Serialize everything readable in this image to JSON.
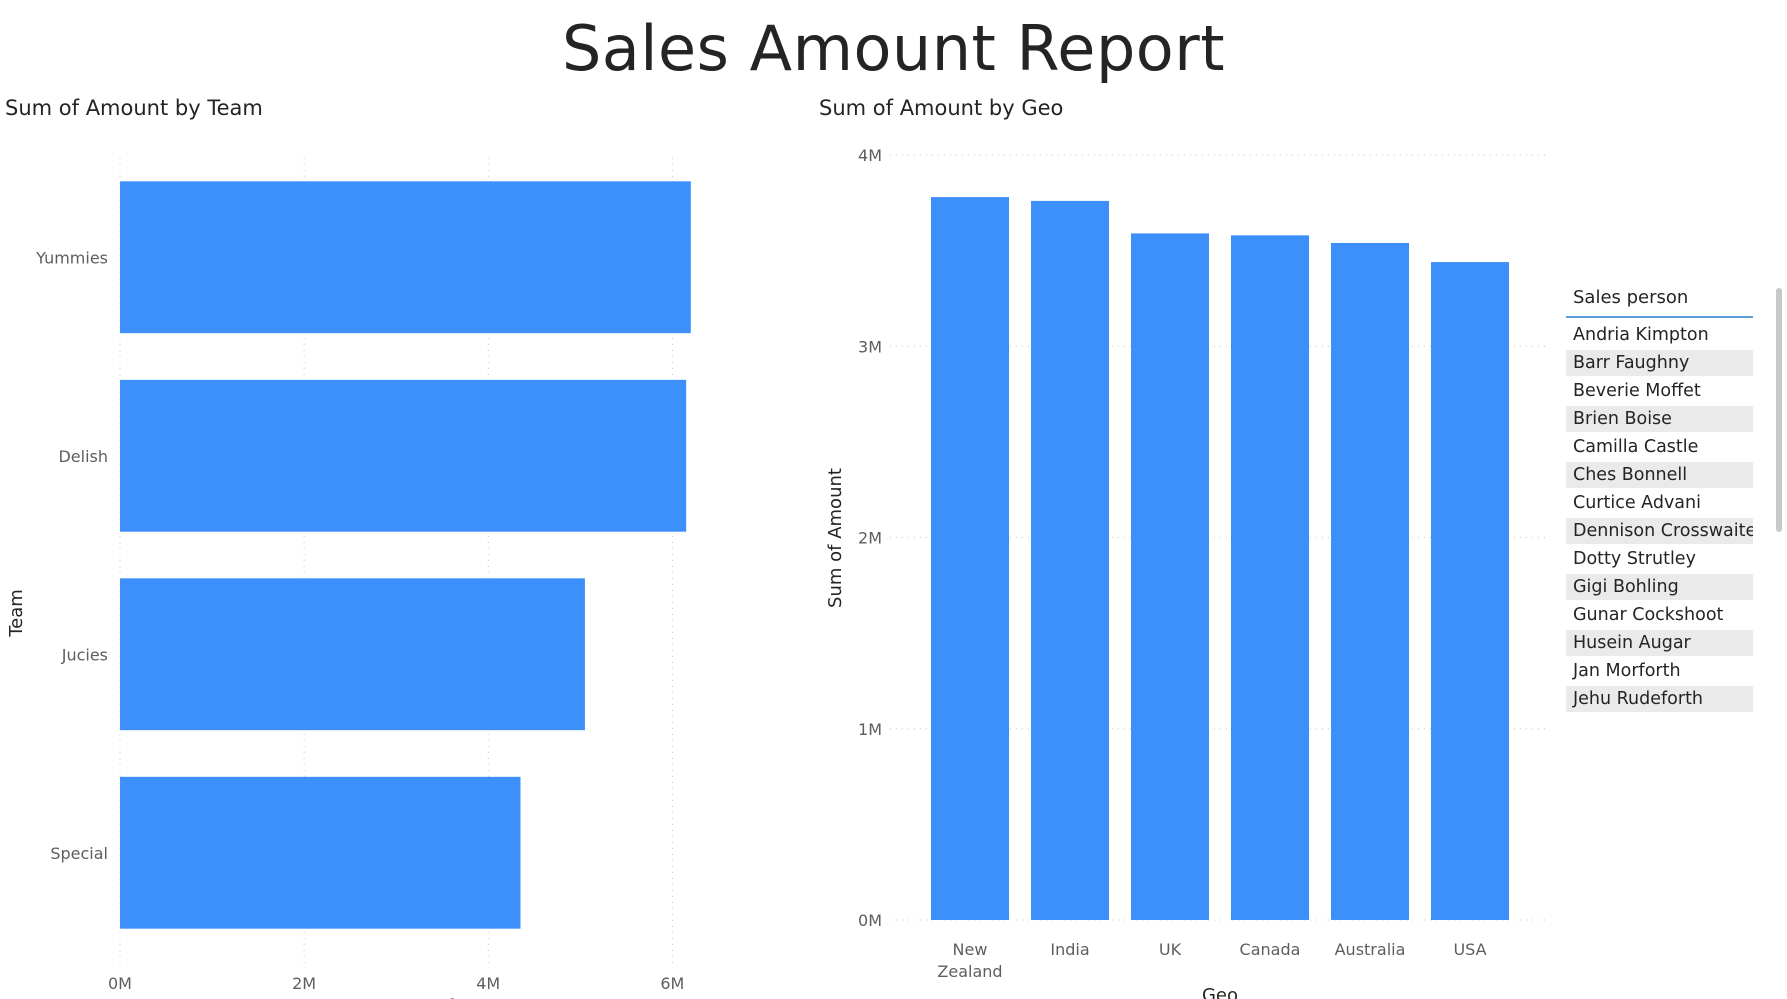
{
  "report": {
    "title": "Sales Amount Report"
  },
  "colors": {
    "bar": "#3d8ffc",
    "gridline": "#c8c6c4",
    "slicer_underline": "#5b9bd5"
  },
  "chart_data": [
    {
      "type": "bar",
      "orientation": "horizontal",
      "title": "Sum of Amount by Team",
      "categories": [
        "Yummies",
        "Delish",
        "Jucies",
        "Special"
      ],
      "values": [
        6200000,
        6150000,
        5050000,
        4350000
      ],
      "xlabel": "Sum of Amount",
      "ylabel": "Team",
      "xticks": [
        "0M",
        "2M",
        "4M",
        "6M"
      ],
      "xtick_values": [
        0,
        2000000,
        4000000,
        6000000
      ],
      "xlim": [
        0,
        6300000
      ],
      "grid": "vertical-dotted"
    },
    {
      "type": "bar",
      "orientation": "vertical",
      "title": "Sum of Amount by Geo",
      "categories": [
        "New Zealand",
        "India",
        "UK",
        "Canada",
        "Australia",
        "USA"
      ],
      "category_lines": [
        [
          "New",
          "Zealand"
        ],
        [
          "India"
        ],
        [
          "UK"
        ],
        [
          "Canada"
        ],
        [
          "Australia"
        ],
        [
          "USA"
        ]
      ],
      "values": [
        3780000,
        3760000,
        3590000,
        3580000,
        3540000,
        3440000
      ],
      "xlabel": "Geo",
      "ylabel": "Sum of Amount",
      "yticks": [
        "0M",
        "1M",
        "2M",
        "3M",
        "4M"
      ],
      "ytick_values": [
        0,
        1000000,
        2000000,
        3000000,
        4000000
      ],
      "ylim": [
        0,
        4000000
      ],
      "grid": "horizontal-dotted"
    }
  ],
  "slicer": {
    "header": "Sales person",
    "items": [
      "Andria Kimpton",
      "Barr Faughny",
      "Beverie Moffet",
      "Brien Boise",
      "Camilla Castle",
      "Ches Bonnell",
      "Curtice Advani",
      "Dennison Crosswaite",
      "Dotty Strutley",
      "Gigi Bohling",
      "Gunar Cockshoot",
      "Husein Augar",
      "Jan Morforth",
      "Jehu Rudeforth"
    ]
  }
}
